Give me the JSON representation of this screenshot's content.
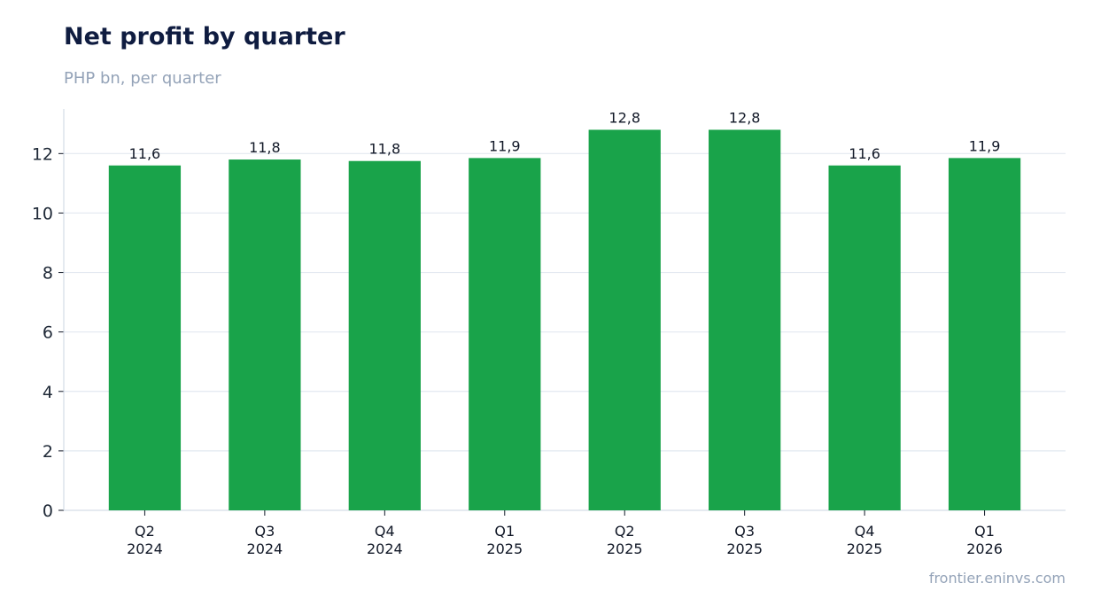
{
  "header": {
    "title": "Net profit by quarter",
    "subtitle": "PHP bn, per quarter"
  },
  "footer": {
    "source": "frontier.eninvs.com"
  },
  "colors": {
    "bar": "#19a34a",
    "grid": "#e2e8f0",
    "axis": "#cbd5e1",
    "text": "#111827"
  },
  "chart_data": {
    "type": "bar",
    "title": "Net profit by quarter",
    "subtitle": "PHP bn, per quarter",
    "categories": [
      [
        "Q2",
        "2024"
      ],
      [
        "Q3",
        "2024"
      ],
      [
        "Q4",
        "2024"
      ],
      [
        "Q1",
        "2025"
      ],
      [
        "Q2",
        "2025"
      ],
      [
        "Q3",
        "2025"
      ],
      [
        "Q4",
        "2025"
      ],
      [
        "Q1",
        "2026"
      ]
    ],
    "values": [
      11.6,
      11.8,
      11.75,
      11.85,
      12.8,
      12.8,
      11.6,
      11.85
    ],
    "data_labels": [
      "11,6",
      "11,8",
      "11,8",
      "11,9",
      "12,8",
      "12,8",
      "11,6",
      "11,9"
    ],
    "y_ticks": [
      0,
      2,
      4,
      6,
      8,
      10,
      12
    ],
    "ylim": [
      0,
      13.5
    ],
    "grid": true,
    "legend": "none"
  }
}
